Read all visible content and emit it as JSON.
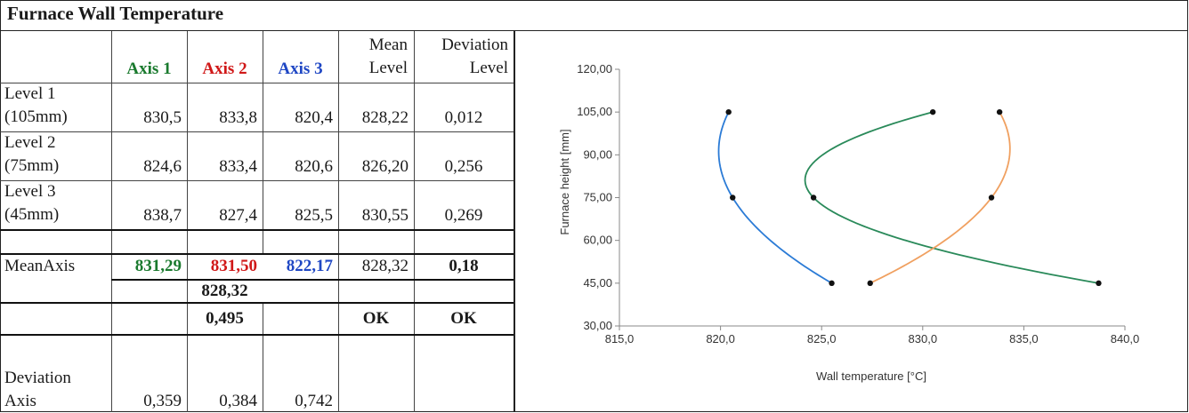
{
  "title": "Furnace Wall Temperature",
  "colors": {
    "axis1": "#1a7a2e",
    "axis2": "#d01818",
    "axis3": "#1f47c4"
  },
  "table": {
    "headers": {
      "axis1": "Axis 1",
      "axis2": "Axis 2",
      "axis3": "Axis 3",
      "mean_level_1": "Mean",
      "mean_level_2": "Level",
      "dev_level_1": "Deviation",
      "dev_level_2": "Level"
    },
    "rows": [
      {
        "label_1": "Level 1",
        "label_2": "(105mm)",
        "a1": "830,5",
        "a2": "833,8",
        "a3": "820,4",
        "mean": "828,22",
        "dev": "0,012"
      },
      {
        "label_1": "Level 2",
        "label_2": "(75mm)",
        "a1": "824,6",
        "a2": "833,4",
        "a3": "820,6",
        "mean": "826,20",
        "dev": "0,256"
      },
      {
        "label_1": "Level 3",
        "label_2": "(45mm)",
        "a1": "838,7",
        "a2": "827,4",
        "a3": "825,5",
        "mean": "830,55",
        "dev": "0,269"
      }
    ],
    "mean_axis": {
      "label": "MeanAxis",
      "a1": "831,29",
      "a2": "831,50",
      "a3": "822,17",
      "mean": "828,32",
      "dev": "0,18"
    },
    "overall_mean": "828,32",
    "overall_dev": "0,495",
    "ok_mean": "OK",
    "ok_dev": "OK",
    "deviation_axis": {
      "label_1": "Deviation",
      "label_2": "Axis",
      "a1": "0,359",
      "a2": "0,384",
      "a3": "0,742"
    }
  },
  "chart_data": {
    "type": "line",
    "xlabel": "Wall temperature  [°C]",
    "ylabel": "Furnace height  [mm]",
    "xlim": [
      815.0,
      840.0
    ],
    "ylim": [
      30.0,
      120.0
    ],
    "x_ticks": [
      "815,0",
      "820,0",
      "825,0",
      "830,0",
      "835,0",
      "840,0"
    ],
    "y_ticks": [
      "30,00",
      "45,00",
      "60,00",
      "75,00",
      "90,00",
      "105,00",
      "120,00"
    ],
    "grid": false,
    "series": [
      {
        "color": "#2b7bd6",
        "points": [
          [
            820.4,
            105
          ],
          [
            820.6,
            75
          ],
          [
            825.5,
            45
          ]
        ]
      },
      {
        "color": "#2a8a5a",
        "points": [
          [
            830.5,
            105
          ],
          [
            824.6,
            75
          ],
          [
            838.7,
            45
          ]
        ]
      },
      {
        "color": "#f0a060",
        "points": [
          [
            833.8,
            105
          ],
          [
            833.4,
            75
          ],
          [
            827.4,
            45
          ]
        ]
      }
    ]
  }
}
